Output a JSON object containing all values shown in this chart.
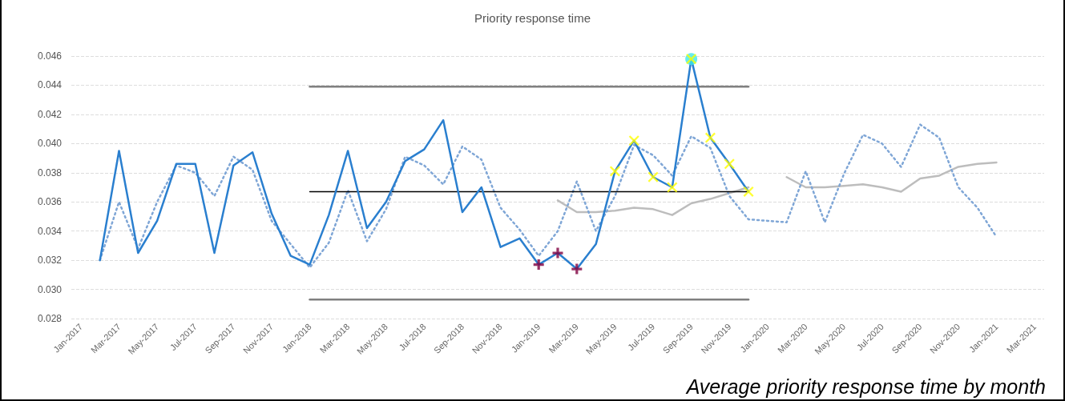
{
  "chart_data": {
    "type": "line",
    "title": "Priority response time",
    "annotations": [
      "Average priority response time by month"
    ],
    "categories": [
      "Jan-2017",
      null,
      "Mar-2017",
      null,
      "May-2017",
      null,
      "Jul-2017",
      null,
      "Sep-2017",
      null,
      "Nov-2017",
      null,
      "Jan-2018",
      null,
      "Mar-2018",
      null,
      "May-2018",
      null,
      "Jul-2018",
      null,
      "Sep-2018",
      null,
      "Nov-2018",
      null,
      "Jan-2019",
      null,
      "Mar-2019",
      null,
      "May-2019",
      null,
      "Jul-2019",
      null,
      "Sep-2019",
      null,
      "Nov-2019",
      null,
      "Jan-2020",
      null,
      "Mar-2020",
      null,
      "May-2020",
      null,
      "Jul-2020",
      null,
      "Sep-2020",
      null,
      "Nov-2020",
      null,
      "Jan-2021",
      null,
      "Mar-2021"
    ],
    "ylim": [
      0.028,
      0.046
    ],
    "yticks": [
      {
        "value": 0.028,
        "label": "0.028"
      },
      {
        "value": 0.03,
        "label": "0.030"
      },
      {
        "value": 0.032,
        "label": "0.032"
      },
      {
        "value": 0.034,
        "label": "0.034"
      },
      {
        "value": 0.036,
        "label": "0.036"
      },
      {
        "value": 0.038,
        "label": "0.038"
      },
      {
        "value": 0.04,
        "label": "0.040"
      },
      {
        "value": 0.042,
        "label": "0.042"
      },
      {
        "value": 0.044,
        "label": "0.044"
      },
      {
        "value": 0.046,
        "label": "0.046"
      }
    ],
    "grid": "y",
    "marker": "none",
    "series": [
      {
        "color": "#bdbdbd",
        "line_style": "solid",
        "values": [
          null,
          null,
          null,
          null,
          null,
          null,
          null,
          null,
          null,
          null,
          null,
          null,
          null,
          null,
          null,
          null,
          null,
          null,
          null,
          null,
          null,
          null,
          null,
          null,
          null,
          0.0361,
          0.0353,
          0.0353,
          0.0354,
          0.0356,
          0.0355,
          0.0351,
          0.0359,
          0.0362,
          0.0366,
          0.037,
          null,
          0.0377,
          0.037,
          0.037,
          0.0371,
          0.0372,
          0.037,
          0.0367,
          0.0376,
          0.0378,
          0.0384,
          0.0386,
          0.0387,
          null,
          null
        ]
      },
      {
        "color": "#7fa6d6",
        "line_style": "dotted",
        "values": [
          null,
          0.032,
          0.036,
          0.0328,
          0.036,
          0.0385,
          0.038,
          0.0364,
          0.0391,
          0.0382,
          0.0347,
          0.0331,
          0.0315,
          0.0332,
          0.0368,
          0.0333,
          0.0355,
          0.0391,
          0.0385,
          0.0372,
          0.0398,
          0.0389,
          0.0356,
          0.0341,
          0.0323,
          0.034,
          0.0374,
          0.034,
          0.0364,
          0.0399,
          0.0392,
          0.0378,
          0.0405,
          0.0397,
          0.0364,
          0.0348,
          0.0347,
          0.0346,
          0.0381,
          0.0346,
          0.0379,
          0.0406,
          0.04,
          0.0384,
          0.0413,
          0.0404,
          0.037,
          0.0356,
          0.0336,
          null,
          null
        ]
      },
      {
        "type": "line",
        "color": "#808080",
        "line_style": "solid",
        "values": [
          null,
          null,
          null,
          null,
          null,
          null,
          null,
          null,
          null,
          null,
          null,
          null,
          0.0439,
          0.0439,
          0.0439,
          0.0439,
          0.0439,
          0.0439,
          0.0439,
          0.0439,
          0.0439,
          0.0439,
          0.0439,
          0.0439,
          0.0439,
          0.0439,
          0.0439,
          0.0439,
          0.0439,
          0.0439,
          0.0439,
          0.0439,
          0.0439,
          0.0439,
          0.0439,
          0.0439,
          null,
          null,
          null,
          null,
          null,
          null,
          null,
          null,
          null,
          null,
          null,
          null,
          null,
          null,
          null
        ]
      },
      {
        "color": "#000000",
        "line_style": "solid",
        "values": [
          null,
          null,
          null,
          null,
          null,
          null,
          null,
          null,
          null,
          null,
          null,
          null,
          0.0367,
          0.0367,
          0.0367,
          0.0367,
          0.0367,
          0.0367,
          0.0367,
          0.0367,
          0.0367,
          0.0367,
          0.0367,
          0.0367,
          0.0367,
          0.0367,
          0.0367,
          0.0367,
          0.0367,
          0.0367,
          0.0367,
          0.0367,
          0.0367,
          0.0367,
          0.0367,
          0.0367,
          null,
          null,
          null,
          null,
          null,
          null,
          null,
          null,
          null,
          null,
          null,
          null,
          null,
          null,
          null
        ]
      },
      {
        "type": "line",
        "color": "#808080",
        "line_style": "solid",
        "values": [
          null,
          null,
          null,
          null,
          null,
          null,
          null,
          null,
          null,
          null,
          null,
          null,
          0.0293,
          0.0293,
          0.0293,
          0.0293,
          0.0293,
          0.0293,
          0.0293,
          0.0293,
          0.0293,
          0.0293,
          0.0293,
          0.0293,
          0.0293,
          0.0293,
          0.0293,
          0.0293,
          0.0293,
          0.0293,
          0.0293,
          0.0293,
          0.0293,
          0.0293,
          0.0293,
          0.0293,
          null,
          null,
          null,
          null,
          null,
          null,
          null,
          null,
          null,
          null,
          null,
          null,
          null,
          null,
          null
        ]
      },
      {
        "color": "#2a7fcf",
        "line_style": "solid",
        "values": [
          null,
          0.032,
          0.0395,
          0.0325,
          0.0347,
          0.0386,
          0.0386,
          0.0325,
          0.0385,
          0.0394,
          0.0352,
          0.0323,
          0.0317,
          0.0351,
          0.0395,
          0.0342,
          0.036,
          0.0388,
          0.0396,
          0.0416,
          0.0353,
          0.037,
          0.0329,
          0.0335,
          0.0317,
          0.0325,
          0.0314,
          0.0331,
          0.0381,
          0.0402,
          0.0377,
          0.037,
          0.0458,
          0.0404,
          0.0386,
          0.0367,
          null,
          null,
          null,
          null,
          null,
          null,
          null,
          null,
          null,
          null,
          null,
          null,
          null,
          null,
          null
        ]
      },
      {
        "type": "scatter",
        "color": "#40e8e8",
        "marker": "circle",
        "values": [
          null,
          null,
          null,
          null,
          null,
          null,
          null,
          null,
          null,
          null,
          null,
          null,
          null,
          null,
          null,
          null,
          null,
          null,
          null,
          null,
          null,
          null,
          null,
          null,
          null,
          null,
          null,
          null,
          null,
          null,
          null,
          null,
          0.0458,
          null,
          null,
          null,
          null,
          null,
          null,
          null,
          null,
          null,
          null,
          null,
          null,
          null,
          null,
          null,
          null,
          null,
          null
        ]
      },
      {
        "type": "scatter",
        "color": "#800040",
        "marker": "cross",
        "values": [
          null,
          null,
          null,
          null,
          null,
          null,
          null,
          null,
          null,
          null,
          null,
          null,
          null,
          null,
          null,
          null,
          null,
          null,
          null,
          null,
          null,
          null,
          null,
          null,
          0.0317,
          0.0325,
          0.0314,
          null,
          null,
          null,
          null,
          null,
          null,
          null,
          null,
          null,
          null,
          null,
          null,
          null,
          null,
          null,
          null,
          null,
          null,
          null,
          null,
          null,
          null,
          null,
          null
        ]
      },
      {
        "type": "scatter",
        "color": "#ffff00",
        "marker": "x",
        "values": [
          null,
          null,
          null,
          null,
          null,
          null,
          null,
          null,
          null,
          null,
          null,
          null,
          null,
          null,
          null,
          null,
          null,
          null,
          null,
          null,
          null,
          null,
          null,
          null,
          null,
          null,
          null,
          null,
          0.0381,
          0.0402,
          0.0377,
          0.037,
          0.0458,
          0.0404,
          0.0386,
          0.0367,
          null,
          null,
          null,
          null,
          null,
          null,
          null,
          null,
          null,
          null,
          null,
          null,
          null,
          null,
          null
        ]
      }
    ]
  }
}
